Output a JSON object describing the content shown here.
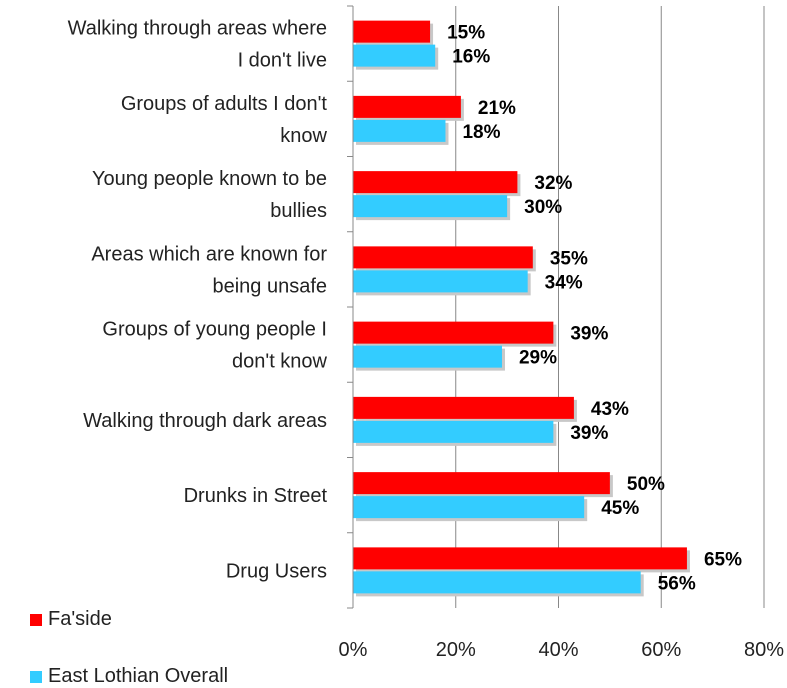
{
  "chart_data": {
    "type": "bar",
    "orientation": "horizontal",
    "categories": [
      [
        "Walking through areas where",
        "I don't live"
      ],
      [
        "Groups of adults I don't",
        "know"
      ],
      [
        "Young people known to be",
        "bullies"
      ],
      [
        "Areas which are known for",
        "being unsafe"
      ],
      [
        "Groups of young people I",
        "don't know"
      ],
      [
        "Walking through dark areas"
      ],
      [
        "Drunks in Street"
      ],
      [
        "Drug Users"
      ]
    ],
    "series": [
      {
        "name": "Fa'side",
        "color": "#ff0000",
        "values": [
          15,
          21,
          32,
          35,
          39,
          43,
          50,
          65
        ],
        "labels": [
          "15%",
          "21%",
          "32%",
          "35%",
          "39%",
          "43%",
          "50%",
          "65%"
        ]
      },
      {
        "name": "East Lothian Overall",
        "color": "#33ccff",
        "values": [
          16,
          18,
          30,
          34,
          29,
          39,
          45,
          56
        ],
        "labels": [
          "16%",
          "18%",
          "30%",
          "34%",
          "29%",
          "39%",
          "45%",
          "56%"
        ]
      }
    ],
    "xlim": [
      0,
      80
    ],
    "xticks": [
      0,
      20,
      40,
      60,
      80
    ],
    "xtick_labels": [
      "0%",
      "20%",
      "40%",
      "60%",
      "80%"
    ],
    "grid": "vertical",
    "legend_position": "bottom-left"
  },
  "legend": {
    "item1": "Fa'side",
    "item2": "East Lothian Overall"
  }
}
